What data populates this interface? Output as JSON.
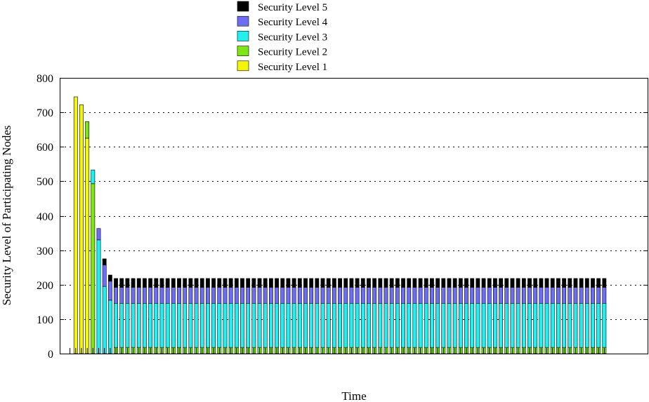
{
  "chart_data": {
    "type": "bar",
    "stacked": true,
    "xlabel": "Time",
    "ylabel": "Security Level of Participating Nodes",
    "ylim": [
      0,
      800
    ],
    "yticks": [
      "0",
      "100",
      "200",
      "300",
      "400",
      "500",
      "600",
      "700",
      "800"
    ],
    "grid": "horizontal dotted",
    "legend_position": "top-center",
    "legend": [
      {
        "name": "Security Level 5",
        "color": "#000000"
      },
      {
        "name": "Security Level 4",
        "color": "#6e6ef5"
      },
      {
        "name": "Security Level 3",
        "color": "#22f0f0"
      },
      {
        "name": "Security Level 2",
        "color": "#7fe514"
      },
      {
        "name": "Security Level 1",
        "color": "#f5f50a"
      }
    ],
    "leading_bars": [
      [
        0,
        0,
        0,
        0,
        0
      ],
      [
        745,
        0,
        0,
        0,
        0
      ],
      [
        722,
        0,
        0,
        0,
        0
      ],
      [
        625,
        48,
        0,
        0,
        0
      ],
      [
        0,
        493,
        40,
        0,
        0
      ],
      [
        0,
        0,
        330,
        33,
        0
      ],
      [
        0,
        0,
        195,
        62,
        18
      ],
      [
        0,
        0,
        155,
        55,
        18
      ]
    ],
    "steady_state_bar": [
      0,
      18,
      128,
      46,
      26
    ],
    "steady_state_count": 86
  }
}
